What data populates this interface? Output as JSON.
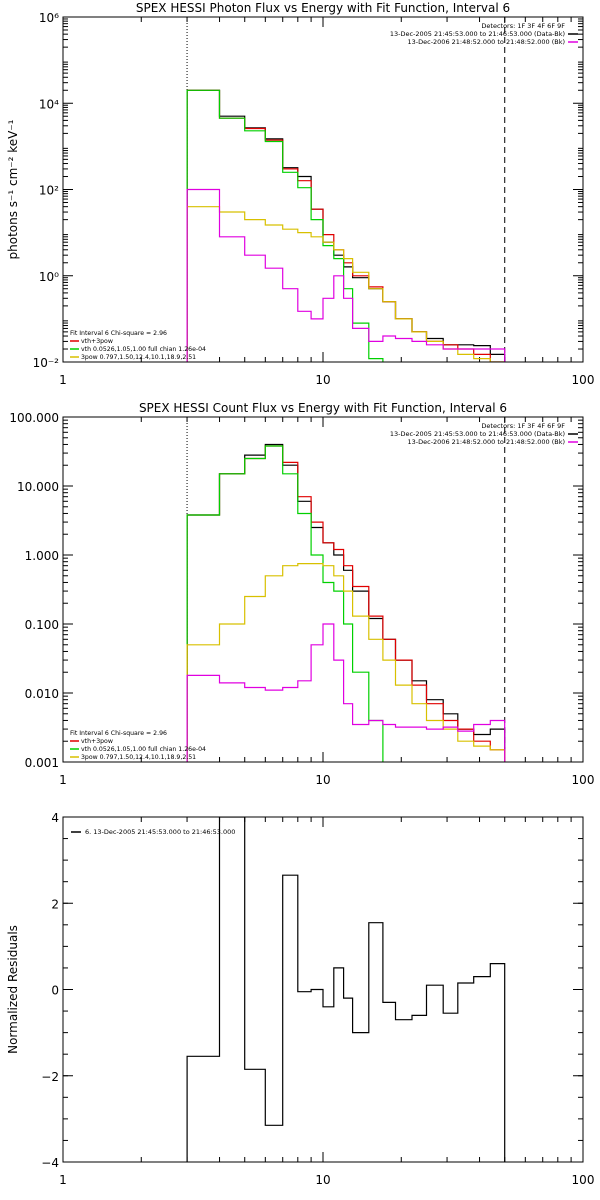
{
  "chart_data": [
    {
      "id": "photon",
      "type": "line",
      "title": "SPEX HESSI Photon Flux vs Energy with Fit Function, Interval 6",
      "xlabel": "",
      "ylabel": "photons s⁻¹ cm⁻² keV⁻¹",
      "xscale": "log",
      "yscale": "log",
      "xlim": [
        1,
        100
      ],
      "ylim": [
        0.01,
        1000000
      ],
      "xticks": [
        {
          "v": 1,
          "label": "1"
        },
        {
          "v": 10,
          "label": "10"
        },
        {
          "v": 100,
          "label": "100"
        }
      ],
      "yticks": [
        {
          "v": 0.01,
          "label": "10⁻²"
        },
        {
          "v": 1,
          "label": "10⁰"
        },
        {
          "v": 100,
          "label": "10²"
        },
        {
          "v": 10000,
          "label": "10⁴"
        },
        {
          "v": 1000000,
          "label": "10⁶"
        }
      ],
      "vlines": [
        {
          "x": 3,
          "style": "dotted"
        },
        {
          "x": 50,
          "style": "dashed"
        }
      ],
      "legend_top": {
        "position": "top-right",
        "lines": [
          {
            "text": "Detectors: 1F 3F 4F 6F 9F",
            "color": ""
          },
          {
            "text": "13-Dec-2005 21:45:53.000 to 21:46:53.000 (Data-Bk)",
            "color": "#000000"
          },
          {
            "text": "13-Dec-2006 21:48:52.000 to 21:48:52.000 (Bk)",
            "color": "#e000e0"
          }
        ]
      },
      "legend_bottom": {
        "position": "bottom-left",
        "lines": [
          {
            "text": "Fit Interval  6    Chi-square = 2.96",
            "color": ""
          },
          {
            "text": "vth+3pow",
            "color": "#e00000"
          },
          {
            "text": "vth 0.0526,1.05,1.00   full chian 1.26e-04",
            "color": "#00d000"
          },
          {
            "text": "3pow 0.797,1.50,12.4,10.1,18.9,2.51",
            "color": "#d8c000"
          }
        ]
      },
      "series": [
        {
          "name": "Data-Bk",
          "color": "#000000",
          "edges": [
            3,
            4,
            5,
            6,
            7,
            8,
            9,
            10,
            11,
            12,
            13,
            15,
            17,
            19,
            22,
            25,
            29,
            33,
            38,
            44,
            50
          ],
          "values": [
            20000,
            5000,
            2700,
            1500,
            320,
            200,
            35,
            6,
            3,
            1.6,
            0.9,
            0.5,
            0.25,
            0.1,
            0.05,
            0.035,
            0.025,
            0.025,
            0.024,
            0.015
          ]
        },
        {
          "name": "vth+3pow",
          "color": "#e00000",
          "edges": [
            3,
            4,
            5,
            6,
            7,
            8,
            9,
            10,
            11,
            12,
            13,
            15,
            17,
            19,
            22,
            25,
            29,
            33,
            38,
            44,
            50
          ],
          "values": [
            20000,
            4500,
            2600,
            1400,
            300,
            160,
            35,
            9,
            4,
            2,
            1,
            0.55,
            0.25,
            0.1,
            0.05,
            0.03,
            0.025,
            0.02,
            0.015,
            0.01
          ]
        },
        {
          "name": "vth",
          "color": "#00d000",
          "edges": [
            3,
            4,
            5,
            6,
            7,
            8,
            9,
            10,
            11,
            12,
            13,
            15,
            17
          ],
          "values": [
            20000,
            4500,
            2300,
            1300,
            250,
            110,
            20,
            5,
            2.5,
            0.5,
            0.08,
            0.012
          ]
        },
        {
          "name": "3pow",
          "color": "#d8c000",
          "edges": [
            3,
            4,
            5,
            6,
            7,
            8,
            9,
            10,
            11,
            12,
            13,
            15,
            17,
            19,
            22,
            25,
            29,
            33,
            38,
            44,
            50
          ],
          "values": [
            40,
            30,
            20,
            15,
            12,
            10,
            8,
            6,
            4,
            2.5,
            1.2,
            0.5,
            0.25,
            0.1,
            0.05,
            0.03,
            0.02,
            0.015,
            0.012,
            0.01
          ]
        },
        {
          "name": "Bk",
          "color": "#e000e0",
          "edges": [
            3,
            4,
            5,
            6,
            7,
            8,
            9,
            10,
            11,
            12,
            13,
            15,
            17,
            19,
            22,
            25,
            29,
            33,
            38,
            44,
            50
          ],
          "values": [
            100,
            8,
            3,
            1.5,
            0.5,
            0.15,
            0.1,
            0.3,
            1.0,
            0.3,
            0.06,
            0.03,
            0.04,
            0.035,
            0.03,
            0.025,
            0.02,
            0.02,
            0.02,
            0.02
          ]
        }
      ]
    },
    {
      "id": "count",
      "type": "line",
      "title": "SPEX HESSI Count Flux vs Energy with Fit Function, Interval 6",
      "xlabel": "",
      "ylabel": "",
      "xscale": "log",
      "yscale": "log",
      "xlim": [
        1,
        100
      ],
      "ylim": [
        0.001,
        100
      ],
      "xticks": [
        {
          "v": 1,
          "label": "1"
        },
        {
          "v": 10,
          "label": "10"
        },
        {
          "v": 100,
          "label": "100"
        }
      ],
      "yticks": [
        {
          "v": 0.001,
          "label": "0.001"
        },
        {
          "v": 0.01,
          "label": "0.010"
        },
        {
          "v": 0.1,
          "label": "0.100"
        },
        {
          "v": 1,
          "label": "1.000"
        },
        {
          "v": 10,
          "label": "10.000"
        },
        {
          "v": 100,
          "label": "100.000"
        }
      ],
      "vlines": [
        {
          "x": 3,
          "style": "dotted"
        },
        {
          "x": 50,
          "style": "dashed"
        }
      ],
      "legend_top": {
        "position": "top-right",
        "lines": [
          {
            "text": "Detectors: 1F 3F 4F 6F 9F",
            "color": ""
          },
          {
            "text": "13-Dec-2005 21:45:53.000 to 21:46:53.000 (Data-Bk)",
            "color": "#000000"
          },
          {
            "text": "13-Dec-2006 21:48:52.000 to 21:48:52.000 (Bk)",
            "color": "#e000e0"
          }
        ]
      },
      "legend_bottom": {
        "position": "bottom-left",
        "lines": [
          {
            "text": "Fit Interval  6    Chi-square = 2.96",
            "color": ""
          },
          {
            "text": "vth+3pow",
            "color": "#e00000"
          },
          {
            "text": "vth 0.0526,1.05,1.00   full chian 1.26e-04",
            "color": "#00d000"
          },
          {
            "text": "3pow 0.797,1.50,12.4,10.1,18.9,2.51",
            "color": "#d8c000"
          }
        ]
      },
      "series": [
        {
          "name": "Data-Bk",
          "color": "#000000",
          "edges": [
            3,
            4,
            5,
            6,
            7,
            8,
            9,
            10,
            11,
            12,
            13,
            15,
            17,
            19,
            22,
            25,
            29,
            33,
            38,
            44,
            50
          ],
          "values": [
            3.8,
            15,
            28,
            40,
            20,
            6,
            2.5,
            1.5,
            1.0,
            0.6,
            0.3,
            0.12,
            0.06,
            0.03,
            0.015,
            0.008,
            0.005,
            0.003,
            0.0025,
            0.003
          ]
        },
        {
          "name": "vth+3pow",
          "color": "#e00000",
          "edges": [
            3,
            4,
            5,
            6,
            7,
            8,
            9,
            10,
            11,
            12,
            13,
            15,
            17,
            19,
            22,
            25,
            29,
            33,
            38,
            44,
            50
          ],
          "values": [
            3.8,
            15,
            25,
            38,
            22,
            7,
            3,
            1.5,
            1.2,
            0.7,
            0.35,
            0.13,
            0.06,
            0.03,
            0.013,
            0.007,
            0.004,
            0.003,
            0.002,
            0.0015
          ]
        },
        {
          "name": "vth",
          "color": "#00d000",
          "edges": [
            3,
            4,
            5,
            6,
            7,
            8,
            9,
            10,
            11,
            12,
            13,
            15,
            17
          ],
          "values": [
            3.8,
            15,
            25,
            38,
            15,
            4,
            1.0,
            0.4,
            0.3,
            0.1,
            0.02,
            0.004
          ]
        },
        {
          "name": "3pow",
          "color": "#d8c000",
          "edges": [
            3,
            4,
            5,
            6,
            7,
            8,
            9,
            10,
            11,
            12,
            13,
            15,
            17,
            19,
            22,
            25,
            29,
            33,
            38,
            44,
            50
          ],
          "values": [
            0.05,
            0.1,
            0.25,
            0.5,
            0.7,
            0.75,
            0.75,
            0.7,
            0.5,
            0.3,
            0.13,
            0.06,
            0.03,
            0.013,
            0.007,
            0.004,
            0.003,
            0.002,
            0.0017,
            0.0015
          ]
        },
        {
          "name": "Bk",
          "color": "#e000e0",
          "edges": [
            3,
            4,
            5,
            6,
            7,
            8,
            9,
            10,
            11,
            12,
            13,
            15,
            17,
            19,
            22,
            25,
            29,
            33,
            38,
            44,
            50
          ],
          "values": [
            0.018,
            0.014,
            0.012,
            0.011,
            0.012,
            0.015,
            0.05,
            0.1,
            0.03,
            0.007,
            0.0035,
            0.004,
            0.0035,
            0.0032,
            0.0032,
            0.003,
            0.0032,
            0.0028,
            0.0035,
            0.004
          ]
        }
      ]
    },
    {
      "id": "resid",
      "type": "line",
      "title": "",
      "xlabel": "",
      "ylabel": "Normalized Residuals",
      "xscale": "log",
      "yscale": "linear",
      "xlim": [
        1,
        100
      ],
      "ylim": [
        -4,
        4
      ],
      "xticks": [
        {
          "v": 1,
          "label": "1"
        },
        {
          "v": 10,
          "label": "10"
        },
        {
          "v": 100,
          "label": "100"
        }
      ],
      "yticks": [
        {
          "v": -4,
          "label": "−4"
        },
        {
          "v": -2,
          "label": "−2"
        },
        {
          "v": 0,
          "label": "0"
        },
        {
          "v": 2,
          "label": "2"
        },
        {
          "v": 4,
          "label": "4"
        }
      ],
      "vlines": [],
      "legend_top": {
        "position": "top-left",
        "lines": [
          {
            "text": "6. 13-Dec-2005 21:45:53.000 to 21:46:53.000",
            "color": "#000000"
          }
        ]
      },
      "legend_bottom": {
        "position": "",
        "lines": []
      },
      "series": [
        {
          "name": "residuals",
          "color": "#000000",
          "edges": [
            3,
            4,
            5,
            6,
            7,
            8,
            9,
            10,
            11,
            12,
            13,
            15,
            17,
            19,
            22,
            25,
            29,
            33,
            38,
            44,
            50
          ],
          "values": [
            -1.55,
            4.0,
            -1.85,
            -3.15,
            2.65,
            -0.05,
            0.0,
            -0.4,
            0.5,
            -0.2,
            -1.0,
            1.55,
            -0.3,
            -0.7,
            -0.6,
            0.1,
            -0.55,
            0.15,
            0.3,
            0.6
          ]
        }
      ]
    }
  ]
}
